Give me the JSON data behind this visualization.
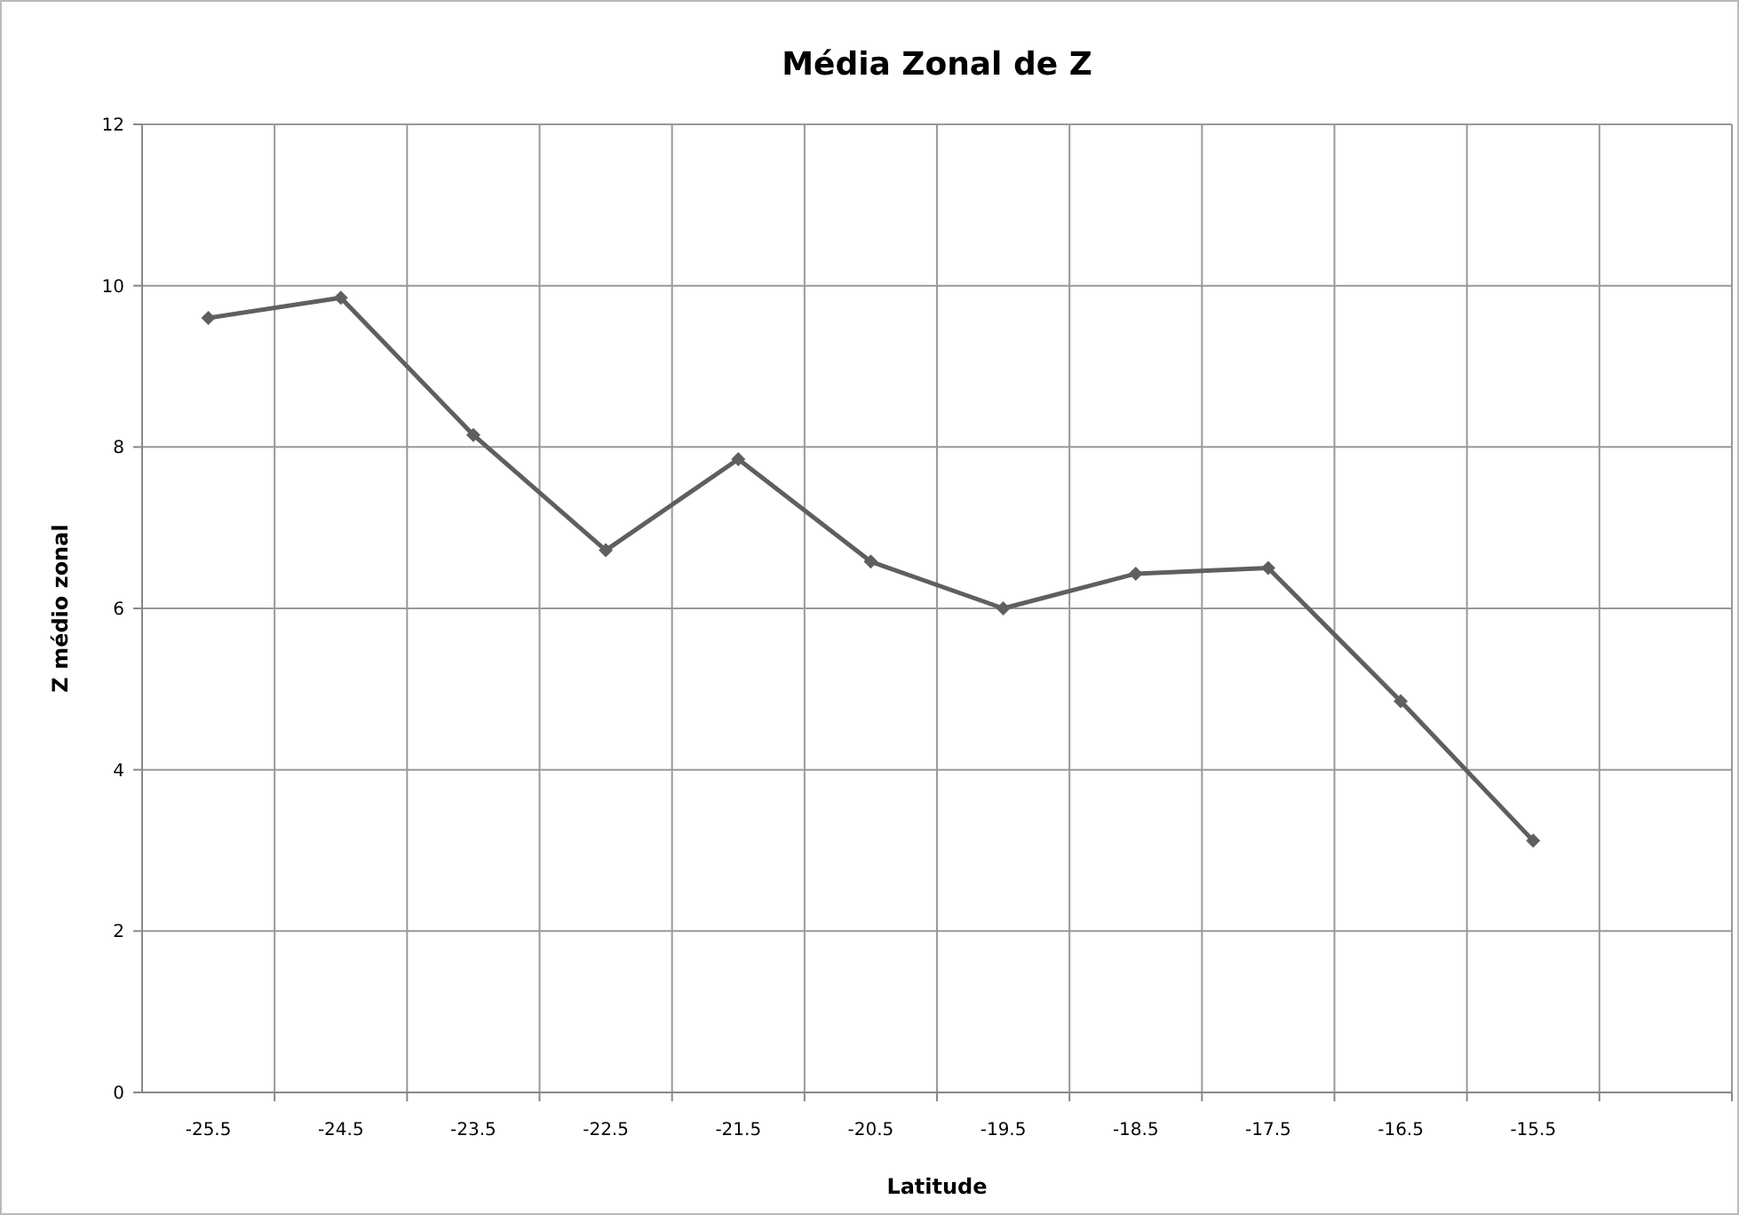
{
  "chart_data": {
    "type": "line",
    "title": "Média Zonal de Z",
    "xlabel": "Latitude",
    "ylabel": "Z médio zonal",
    "categories": [
      "-25.5",
      "-24.5",
      "-23.5",
      "-22.5",
      "-21.5",
      "-20.5",
      "-19.5",
      "-18.5",
      "-17.5",
      "-16.5",
      "-15.5",
      null
    ],
    "series": [
      {
        "color": "#5f5f5f",
        "values": [
          9.6,
          9.85,
          8.15,
          6.72,
          7.85,
          6.58,
          6.0,
          6.43,
          6.5,
          4.85,
          3.12,
          null
        ]
      }
    ],
    "ylim": [
      0,
      12
    ],
    "yticks": [
      0,
      2,
      4,
      6,
      8,
      10,
      12
    ],
    "grid": true,
    "marker": "diamond",
    "line_style": "solid"
  }
}
